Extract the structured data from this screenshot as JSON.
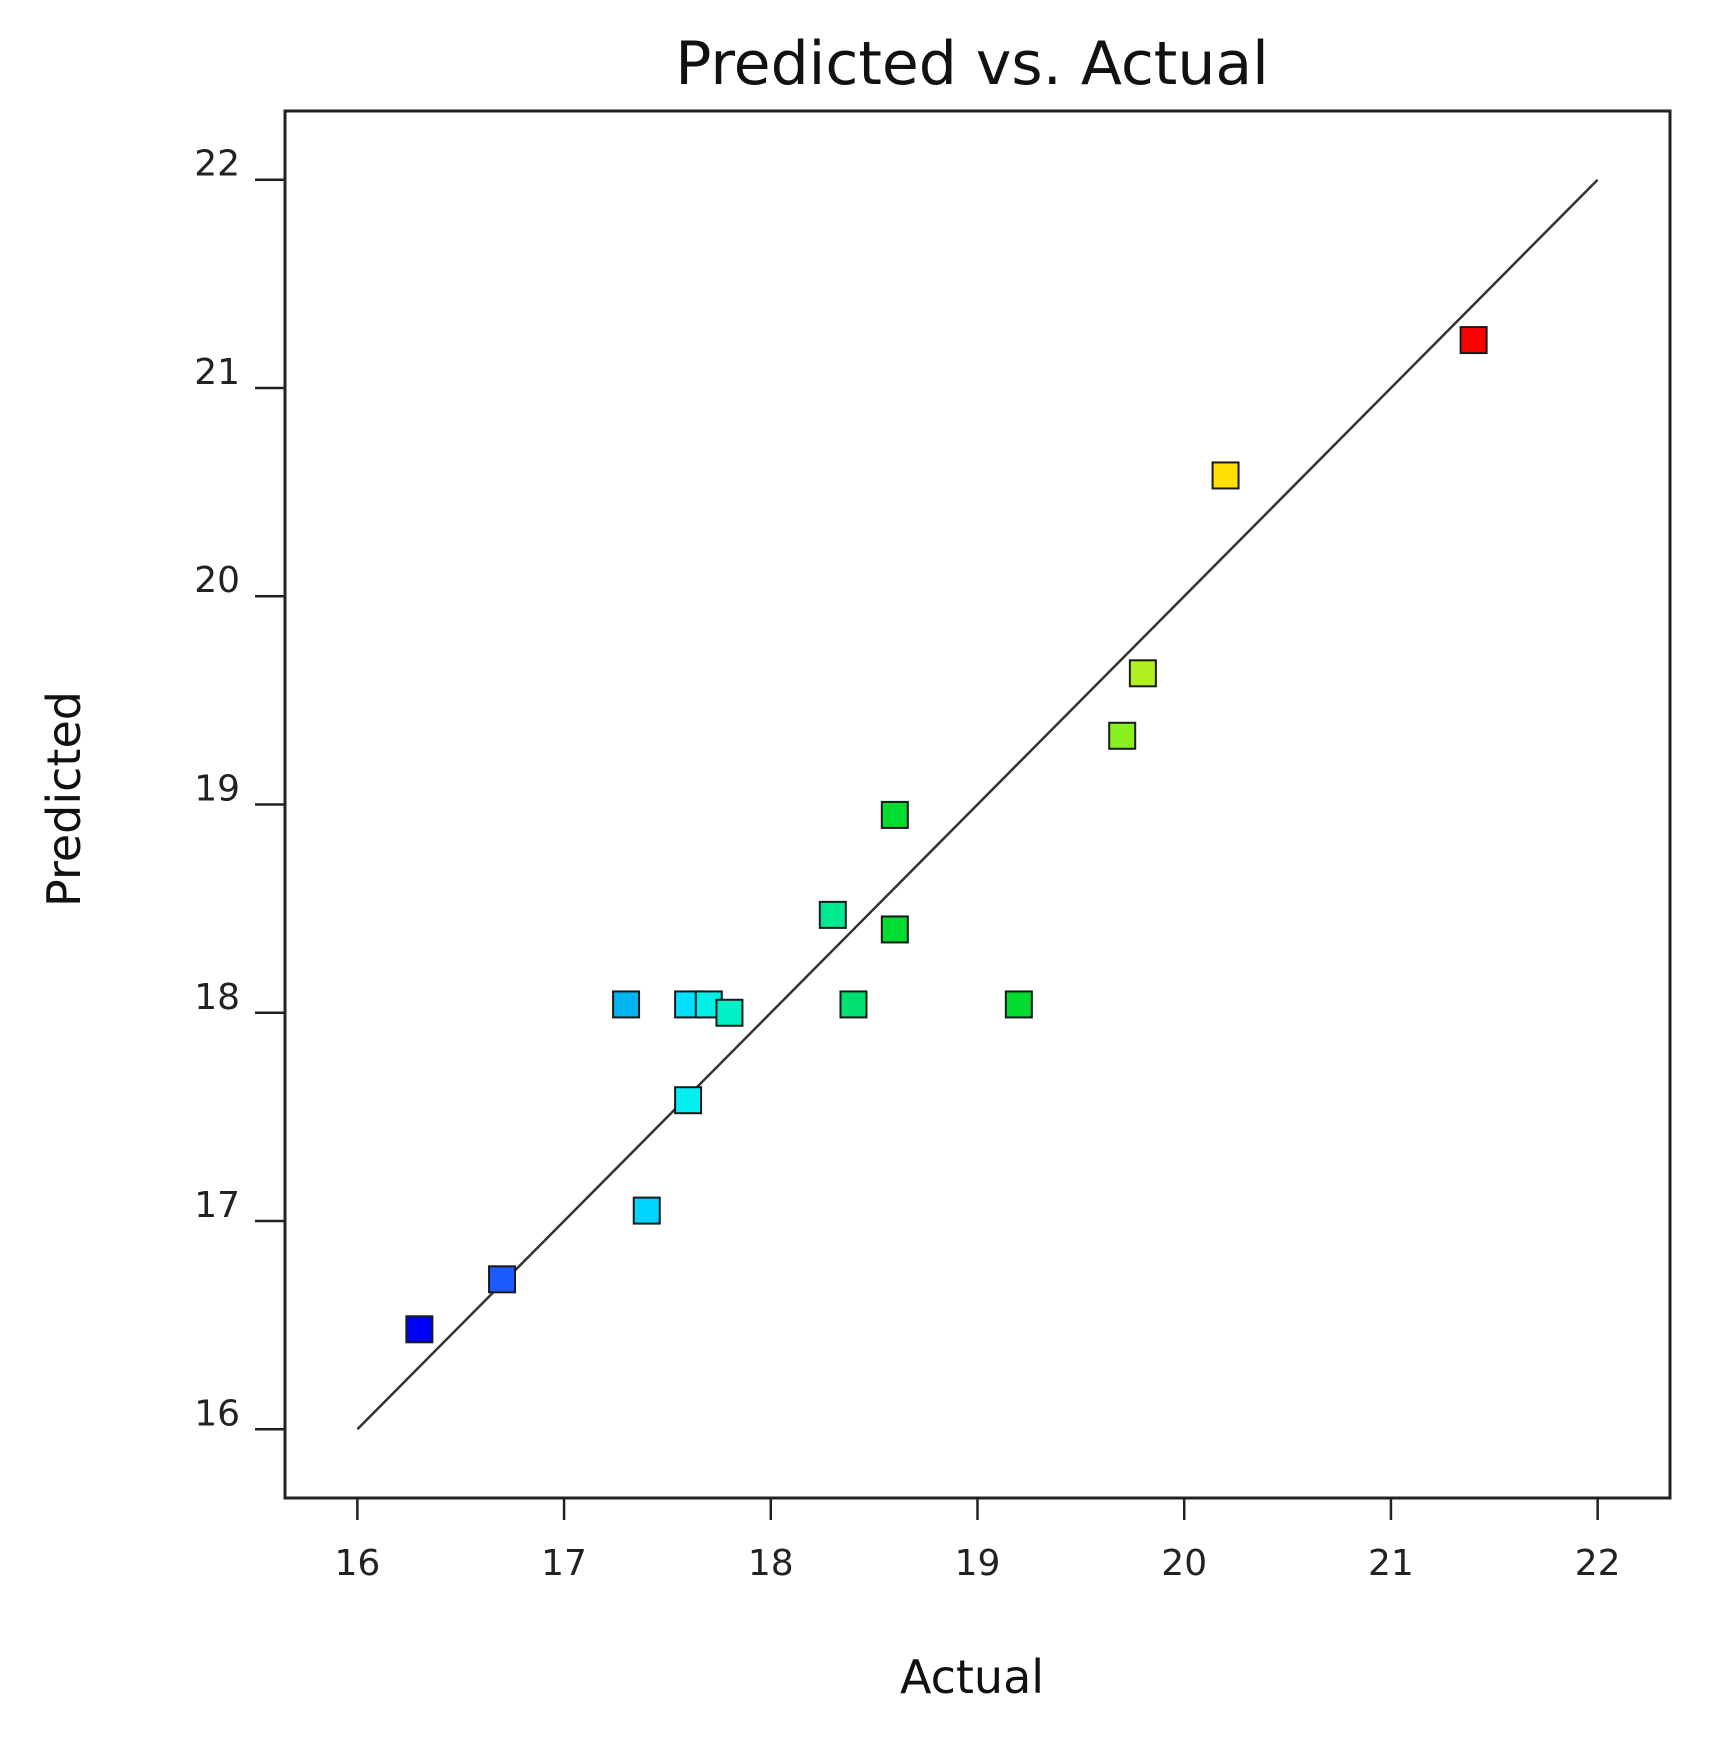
{
  "chart_data": {
    "type": "scatter",
    "title": "Predicted vs. Actual",
    "xlabel": "Actual",
    "ylabel": "Predicted",
    "xlim": [
      15.65,
      22.35
    ],
    "ylim": [
      15.67,
      22.33
    ],
    "x_ticks": [
      "16",
      "17",
      "18",
      "19",
      "20",
      "21",
      "22"
    ],
    "y_ticks": [
      "16",
      "17",
      "18",
      "19",
      "20",
      "21",
      "22"
    ],
    "x_tick_values": [
      16,
      17,
      18,
      19,
      20,
      21,
      22
    ],
    "y_tick_values": [
      16,
      17,
      18,
      19,
      20,
      21,
      22
    ],
    "grid": false,
    "marker": "square",
    "reference_line": {
      "x": [
        16,
        22
      ],
      "y": [
        16,
        22
      ]
    },
    "points": [
      {
        "x": 16.3,
        "y": 16.48,
        "color": "#0000ff"
      },
      {
        "x": 16.7,
        "y": 16.72,
        "color": "#1e5bff"
      },
      {
        "x": 17.4,
        "y": 17.05,
        "color": "#00d4ff"
      },
      {
        "x": 17.3,
        "y": 18.04,
        "color": "#00b4f0"
      },
      {
        "x": 17.6,
        "y": 18.04,
        "color": "#00e0ff"
      },
      {
        "x": 17.7,
        "y": 18.04,
        "color": "#00f0e8"
      },
      {
        "x": 17.8,
        "y": 18.0,
        "color": "#00f0c8"
      },
      {
        "x": 17.6,
        "y": 17.58,
        "color": "#00f0f0"
      },
      {
        "x": 18.3,
        "y": 18.47,
        "color": "#00e890"
      },
      {
        "x": 18.4,
        "y": 18.04,
        "color": "#00e070"
      },
      {
        "x": 18.6,
        "y": 18.95,
        "color": "#00dd30"
      },
      {
        "x": 18.6,
        "y": 18.4,
        "color": "#00dd30"
      },
      {
        "x": 19.2,
        "y": 18.04,
        "color": "#00dd30"
      },
      {
        "x": 19.7,
        "y": 19.33,
        "color": "#88f020"
      },
      {
        "x": 19.8,
        "y": 19.63,
        "color": "#b0f020"
      },
      {
        "x": 20.2,
        "y": 20.58,
        "color": "#ffe000"
      },
      {
        "x": 21.4,
        "y": 21.23,
        "color": "#ff0000"
      }
    ]
  }
}
